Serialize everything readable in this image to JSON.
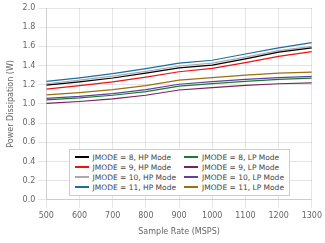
{
  "chart_data": {
    "type": "line",
    "x": [
      500,
      600,
      700,
      800,
      900,
      1000,
      1100,
      1200,
      1300
    ],
    "series": [
      {
        "name": "JMODE = 8, HP Mode",
        "color": "#000000",
        "values": [
          1.195,
          1.23,
          1.27,
          1.32,
          1.375,
          1.405,
          1.47,
          1.54,
          1.585
        ]
      },
      {
        "name": "JMODE = 9, HP Mode",
        "color": "#ee1111",
        "values": [
          1.155,
          1.19,
          1.23,
          1.28,
          1.335,
          1.37,
          1.43,
          1.495,
          1.545
        ]
      },
      {
        "name": "JMODE = 10, HP Mode",
        "color": "#aaaaaa",
        "values": [
          1.21,
          1.248,
          1.29,
          1.34,
          1.395,
          1.425,
          1.488,
          1.555,
          1.6
        ]
      },
      {
        "name": "JMODE = 11, HP Mode",
        "color": "#1a6ea6",
        "values": [
          1.235,
          1.272,
          1.315,
          1.368,
          1.425,
          1.455,
          1.52,
          1.585,
          1.638
        ]
      },
      {
        "name": "JMODE = 8, LP Mode",
        "color": "#1a7a30",
        "values": [
          1.042,
          1.062,
          1.09,
          1.128,
          1.185,
          1.212,
          1.235,
          1.255,
          1.268
        ]
      },
      {
        "name": "JMODE = 9, LP Mode",
        "color": "#7b2060",
        "values": [
          1.005,
          1.025,
          1.052,
          1.09,
          1.145,
          1.17,
          1.193,
          1.21,
          1.22
        ]
      },
      {
        "name": "JMODE = 10, LP Mode",
        "color": "#6040a0",
        "values": [
          1.058,
          1.078,
          1.108,
          1.148,
          1.205,
          1.232,
          1.256,
          1.275,
          1.288
        ]
      },
      {
        "name": "JMODE = 11, LP Mode",
        "color": "#9a7010",
        "values": [
          1.095,
          1.118,
          1.148,
          1.19,
          1.248,
          1.275,
          1.3,
          1.32,
          1.332
        ]
      }
    ],
    "x_label": "Sample Rate (MSPS)",
    "y_label": "Power Dissipation (W)",
    "xlim": [
      500,
      1300
    ],
    "ylim": [
      0,
      2
    ],
    "xticks": [
      500,
      600,
      700,
      800,
      900,
      1000,
      1100,
      1200,
      1300
    ],
    "yticks": [
      {
        "value": 0,
        "label": "0.0"
      },
      0.2,
      0.4,
      0.6,
      0.8,
      {
        "value": 1.0,
        "label": "1.0"
      },
      1.2,
      1.4,
      1.6,
      1.8,
      {
        "value": 2.0,
        "label": "2.0"
      }
    ],
    "grid": true,
    "legend": "bottom"
  }
}
